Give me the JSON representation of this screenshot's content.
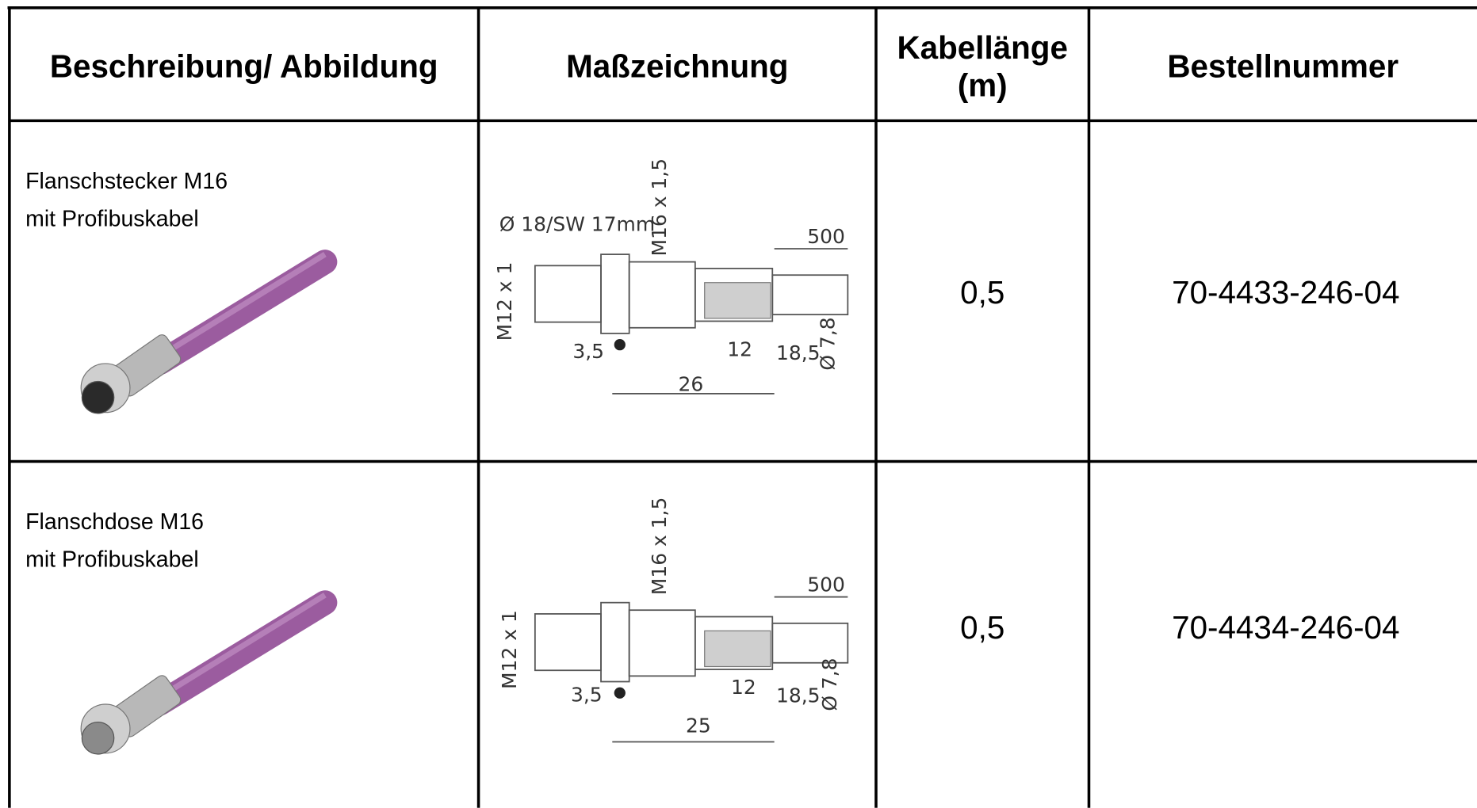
{
  "table": {
    "header": [
      [
        "Beschreibung/ Abbildung"
      ],
      [
        "Maßzeichnung"
      ],
      [
        "Kabellänge",
        "(m)"
      ],
      [
        "Bestellnummer"
      ]
    ],
    "rows": [
      {
        "description": [
          "Flanschstecker M16",
          "mit Profibuskabel"
        ],
        "drawing_labels": [
          "Ø 18/SW 17mm",
          "M16 x 1,5",
          "500",
          "M12 x 1",
          "3,5",
          "12",
          "18,5",
          "Ø 7,8",
          "26"
        ],
        "length": "0,5",
        "order_number": "70-4433-246-04"
      },
      {
        "description": [
          "Flanschdose M16",
          "mit Profibuskabel"
        ],
        "drawing_labels": [
          "M16 x 1,5",
          "500",
          "M12 x 1",
          "3,5",
          "12",
          "18,5",
          "Ø 7,8",
          "25"
        ],
        "length": "0,5",
        "order_number": "70-4434-246-04"
      }
    ]
  }
}
